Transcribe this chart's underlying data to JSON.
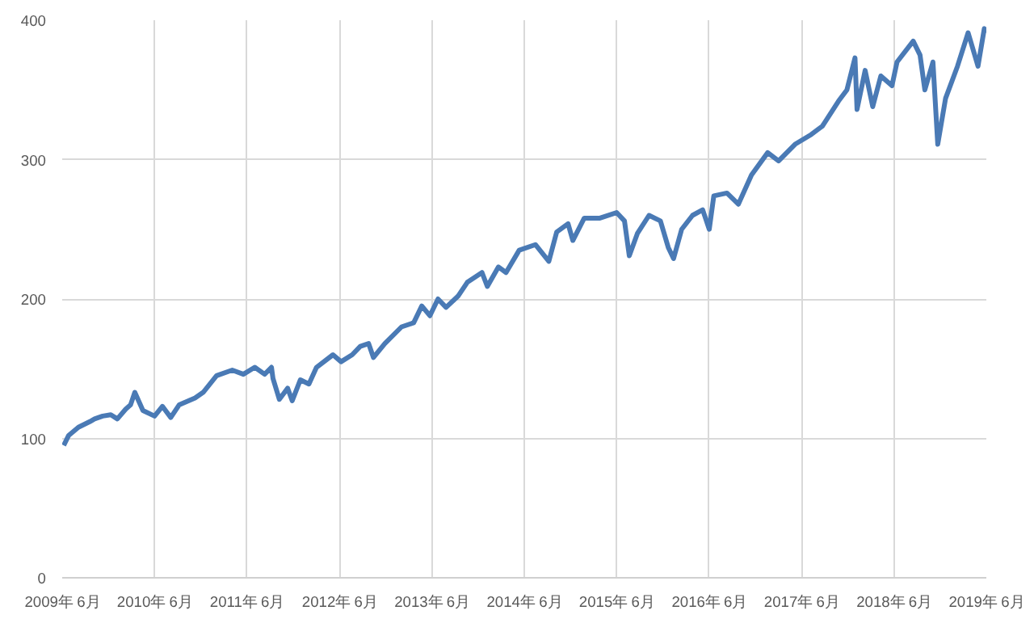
{
  "chart_data": {
    "type": "line",
    "x": [
      "2009-06-07",
      "2009-06-26",
      "2009-08-04",
      "2009-09-18",
      "2009-10-07",
      "2009-11-08",
      "2009-12-10",
      "2010-01-05",
      "2010-02-07",
      "2010-02-26",
      "2010-03-15",
      "2010-04-16",
      "2010-06-01",
      "2010-07-02",
      "2010-08-04",
      "2010-09-06",
      "2010-11-08",
      "2010-12-10",
      "2011-02-01",
      "2011-04-04",
      "2011-05-18",
      "2011-07-02",
      "2011-08-10",
      "2011-09-06",
      "2011-09-12",
      "2011-10-07",
      "2011-11-09",
      "2011-11-27",
      "2011-12-29",
      "2012-02-01",
      "2012-03-02",
      "2012-05-06",
      "2012-06-07",
      "2012-07-21",
      "2012-08-22",
      "2012-09-24",
      "2012-10-13",
      "2012-11-27",
      "2013-02-01",
      "2013-03-21",
      "2013-04-22",
      "2013-05-24",
      "2013-06-25",
      "2013-07-27",
      "2013-09-12",
      "2013-10-19",
      "2013-12-16",
      "2014-01-06",
      "2014-02-19",
      "2014-03-21",
      "2014-05-12",
      "2014-07-15",
      "2014-09-06",
      "2014-10-07",
      "2014-11-21",
      "2014-12-10",
      "2015-01-24",
      "2015-03-27",
      "2015-06-01",
      "2015-07-02",
      "2015-07-21",
      "2015-08-22",
      "2015-10-07",
      "2015-11-21",
      "2015-12-22",
      "2016-01-12",
      "2016-02-13",
      "2016-03-27",
      "2016-05-06",
      "2016-06-01",
      "2016-06-19",
      "2016-08-10",
      "2016-09-24",
      "2016-11-15",
      "2017-01-18",
      "2017-03-02",
      "2017-05-06",
      "2017-07-09",
      "2017-08-22",
      "2017-10-25",
      "2017-11-27",
      "2017-12-29",
      "2018-01-06",
      "2018-02-07",
      "2018-03-09",
      "2018-04-10",
      "2018-05-24",
      "2018-06-13",
      "2018-08-16",
      "2018-09-12",
      "2018-10-01",
      "2018-11-02",
      "2018-11-21",
      "2018-12-22",
      "2019-02-07",
      "2019-03-21",
      "2019-04-29",
      "2019-05-24",
      "2019-06-01"
    ],
    "series": [
      {
        "color": "#4a7ab5",
        "values": [
          95,
          102,
          108,
          112,
          114,
          116,
          117,
          114,
          121,
          124,
          133,
          120,
          116,
          123,
          115,
          124,
          129,
          133,
          145,
          149,
          146,
          151,
          146,
          151,
          143,
          128,
          136,
          127,
          142,
          139,
          151,
          160,
          155,
          160,
          166,
          168,
          158,
          168,
          180,
          183,
          195,
          188,
          200,
          194,
          202,
          212,
          219,
          209,
          223,
          219,
          235,
          239,
          227,
          248,
          254,
          242,
          258,
          258,
          262,
          256,
          231,
          247,
          260,
          256,
          237,
          229,
          250,
          260,
          264,
          250,
          274,
          276,
          268,
          289,
          305,
          299,
          311,
          318,
          324,
          342,
          350,
          373,
          336,
          364,
          338,
          360,
          353,
          370,
          385,
          375,
          350,
          370,
          311,
          344,
          367,
          391,
          367,
          394,
          391
        ]
      }
    ],
    "xlim": [
      "2009-06-01",
      "2019-06-01"
    ],
    "xticks": [
      {
        "value": "2009-06-01",
        "label": "2009年 6月"
      },
      {
        "value": "2010-06-01",
        "label": "2010年 6月"
      },
      {
        "value": "2011-06-01",
        "label": "2011年 6月"
      },
      {
        "value": "2012-06-01",
        "label": "2012年 6月"
      },
      {
        "value": "2013-06-01",
        "label": "2013年 6月"
      },
      {
        "value": "2014-06-01",
        "label": "2014年 6月"
      },
      {
        "value": "2015-06-01",
        "label": "2015年 6月"
      },
      {
        "value": "2016-06-01",
        "label": "2016年 6月"
      },
      {
        "value": "2017-06-01",
        "label": "2017年 6月"
      },
      {
        "value": "2018-06-01",
        "label": "2018年 6月"
      },
      {
        "value": "2019-06-01",
        "label": "2019年 6月"
      }
    ],
    "ylim": [
      0,
      400
    ],
    "yticks": [
      0,
      100,
      200,
      300,
      400
    ],
    "grid": true,
    "marker": "none",
    "line_style": "solid"
  }
}
